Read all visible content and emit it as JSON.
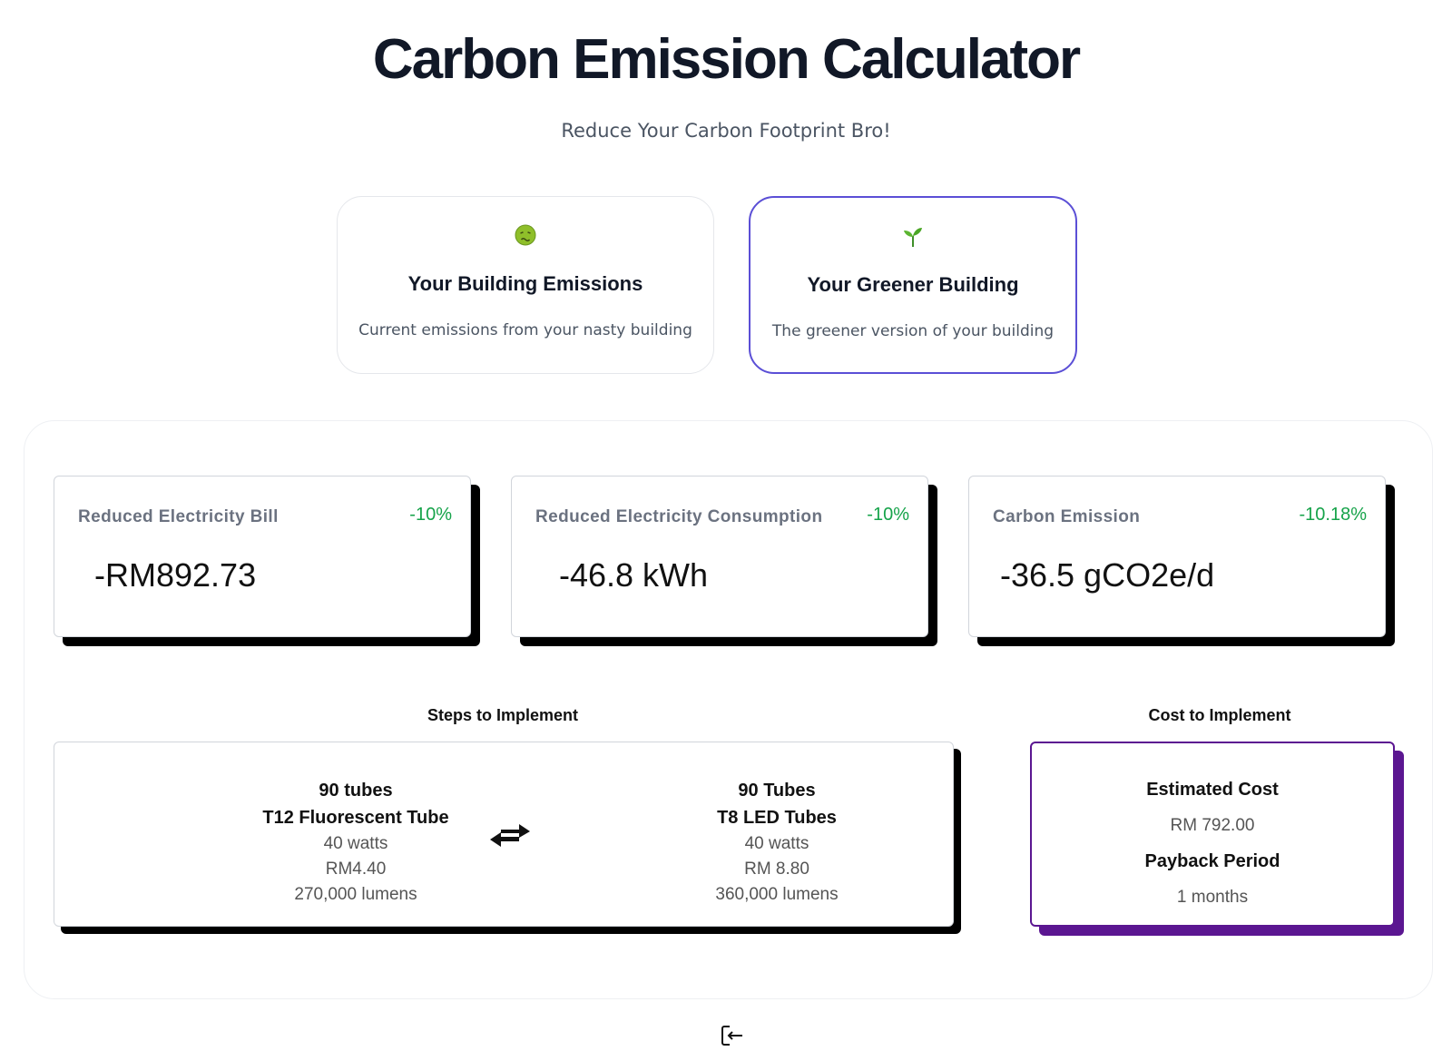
{
  "header": {
    "title": "Carbon Emission Calculator",
    "subtitle": "Reduce Your Carbon Footprint Bro!"
  },
  "modes": [
    {
      "icon": "nauseated-face-icon",
      "title": "Your Building Emissions",
      "description": "Current emissions from your nasty building",
      "active": false
    },
    {
      "icon": "seedling-icon",
      "title": "Your Greener Building",
      "description": "The greener version of your building",
      "active": true
    }
  ],
  "stats": [
    {
      "label": "Reduced Electricity Bill",
      "change": "-10%",
      "value": "-RM892.73"
    },
    {
      "label": "Reduced Electricity Consumption",
      "change": "-10%",
      "value": "-46.8 kWh"
    },
    {
      "label": "Carbon Emission",
      "change": "-10.18%",
      "value": "-36.5 gCO2e/d"
    }
  ],
  "steps": {
    "heading": "Steps to Implement",
    "from": {
      "quantity": "90 tubes",
      "name": "T12 Fluorescent Tube",
      "watts": "40 watts",
      "price": "RM4.40",
      "lumens": "270,000 lumens"
    },
    "to": {
      "quantity": "90 Tubes",
      "name": "T8 LED Tubes",
      "watts": "40 watts",
      "price": "RM 8.80",
      "lumens": "360,000 lumens"
    },
    "swap_icon": "swap-arrows-icon"
  },
  "cost": {
    "heading": "Cost to Implement",
    "estimated_label": "Estimated Cost",
    "estimated_value": "RM 792.00",
    "payback_label": "Payback Period",
    "payback_value": "1 months"
  },
  "footer": {
    "icon": "logout-icon"
  },
  "colors": {
    "accent": "#5b4fd6",
    "cost_accent": "#5b1691",
    "positive": "#16a34a",
    "text": "#111827"
  }
}
